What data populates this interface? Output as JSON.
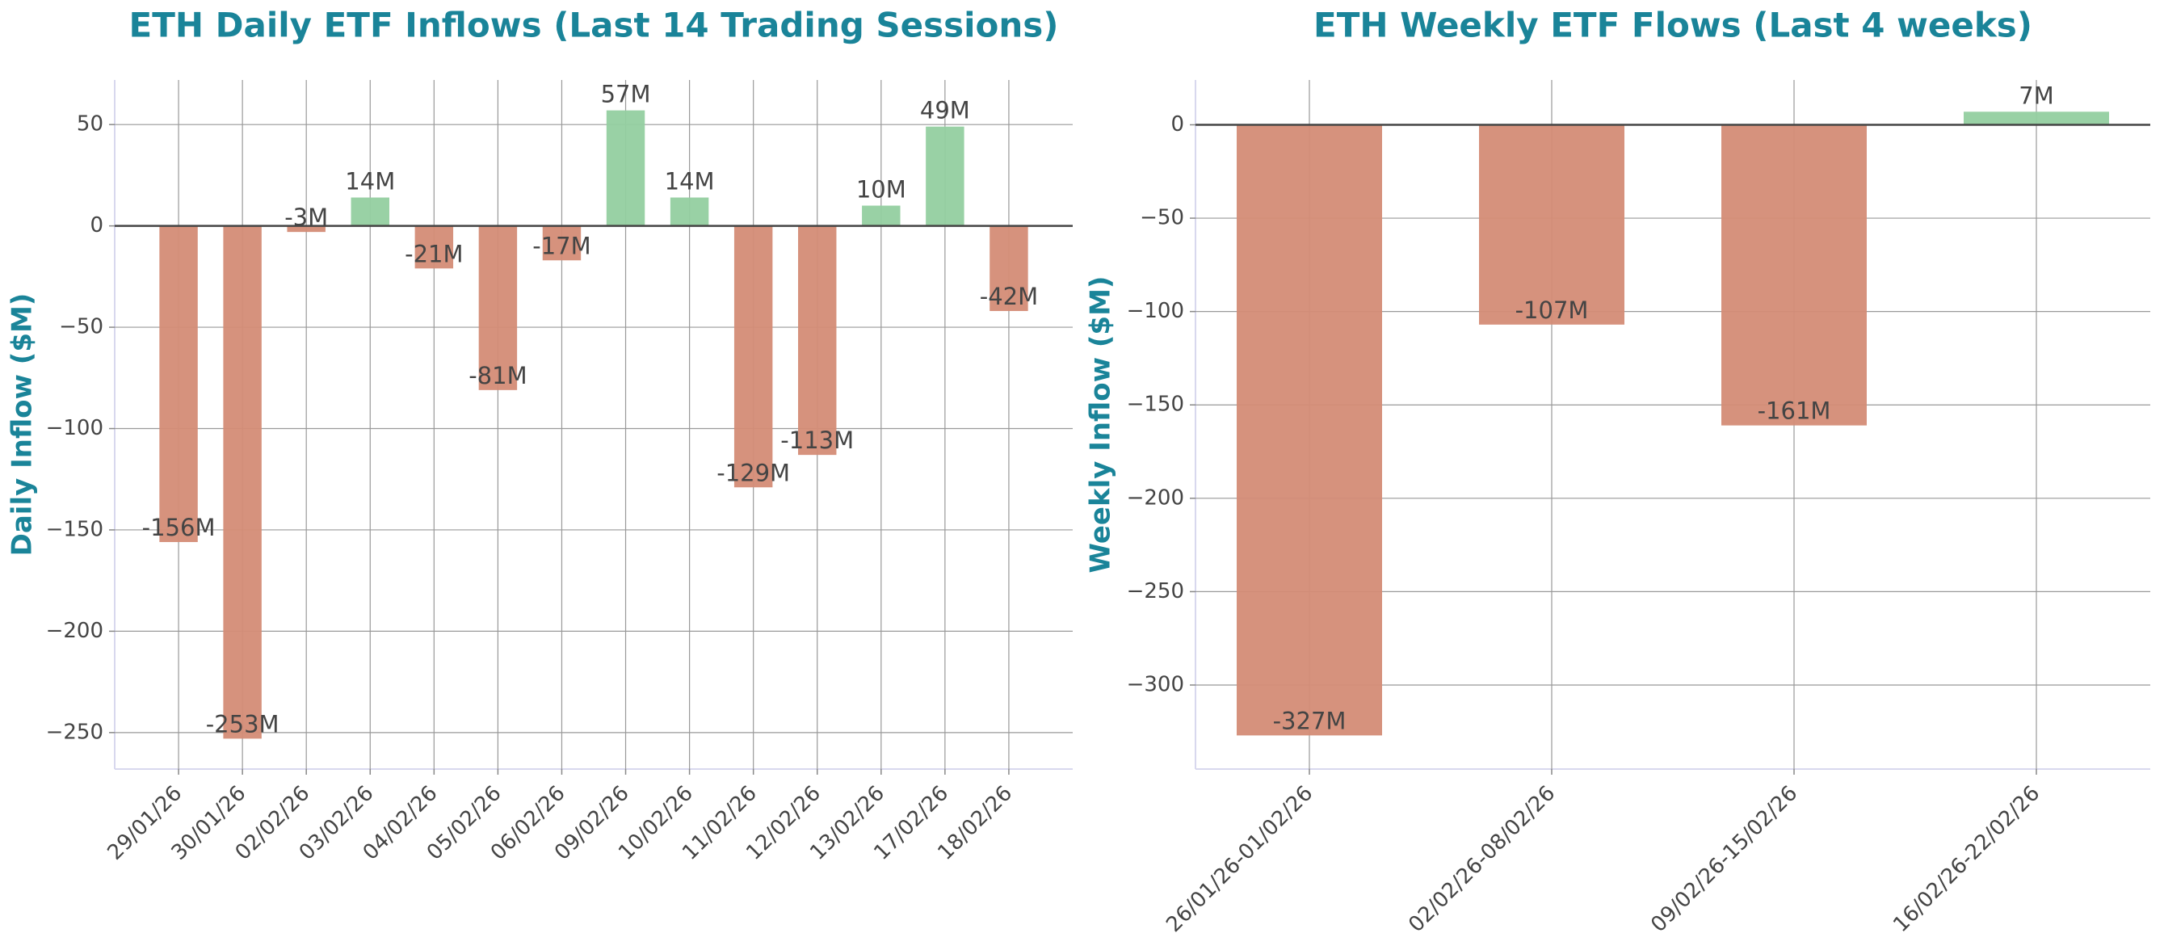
{
  "chart_data": [
    {
      "type": "bar",
      "title": "ETH Daily ETF Inflows (Last 14 Trading Sessions)",
      "y_label": "Daily Inflow ($M)",
      "categories": [
        "29/01/26",
        "30/01/26",
        "02/02/26",
        "03/02/26",
        "04/02/26",
        "05/02/26",
        "06/02/26",
        "09/02/26",
        "10/02/26",
        "11/02/26",
        "12/02/26",
        "13/02/26",
        "17/02/26",
        "18/02/26"
      ],
      "values": [
        -156,
        -253,
        -3,
        14,
        -21,
        -81,
        -17,
        57,
        14,
        -129,
        -113,
        10,
        49,
        -42
      ],
      "value_labels": [
        "-156M",
        "-253M",
        "-3M",
        "14M",
        "-21M",
        "-81M",
        "-17M",
        "57M",
        "14M",
        "-129M",
        "-113M",
        "10M",
        "49M",
        "-42M"
      ],
      "positive_color": "#94cfa0",
      "negative_color": "#d48c76",
      "ylim": [
        -268,
        72
      ],
      "yticks": [
        {
          "value": -250,
          "label": "−250"
        },
        {
          "value": -200,
          "label": "−200"
        },
        {
          "value": -150,
          "label": "−150"
        },
        {
          "value": -100,
          "label": "−100"
        },
        {
          "value": -50,
          "label": "−50"
        },
        0,
        50
      ],
      "grid": true
    },
    {
      "type": "bar",
      "title": "ETH Weekly ETF Flows (Last 4 weeks)",
      "y_label": "Weekly Inflow ($M)",
      "categories": [
        "26/01/26-01/02/26",
        "02/02/26-08/02/26",
        "09/02/26-15/02/26",
        "16/02/26-22/02/26"
      ],
      "values": [
        -327,
        -107,
        -161,
        7
      ],
      "value_labels": [
        "-327M",
        "-107M",
        "-161M",
        "7M"
      ],
      "positive_color": "#94cfa0",
      "negative_color": "#d48c76",
      "ylim": [
        -345,
        24
      ],
      "yticks": [
        {
          "value": -300,
          "label": "−300"
        },
        {
          "value": -250,
          "label": "−250"
        },
        {
          "value": -200,
          "label": "−200"
        },
        {
          "value": -150,
          "label": "−150"
        },
        {
          "value": -100,
          "label": "−100"
        },
        {
          "value": -50,
          "label": "−50"
        },
        0
      ],
      "grid": true
    }
  ]
}
